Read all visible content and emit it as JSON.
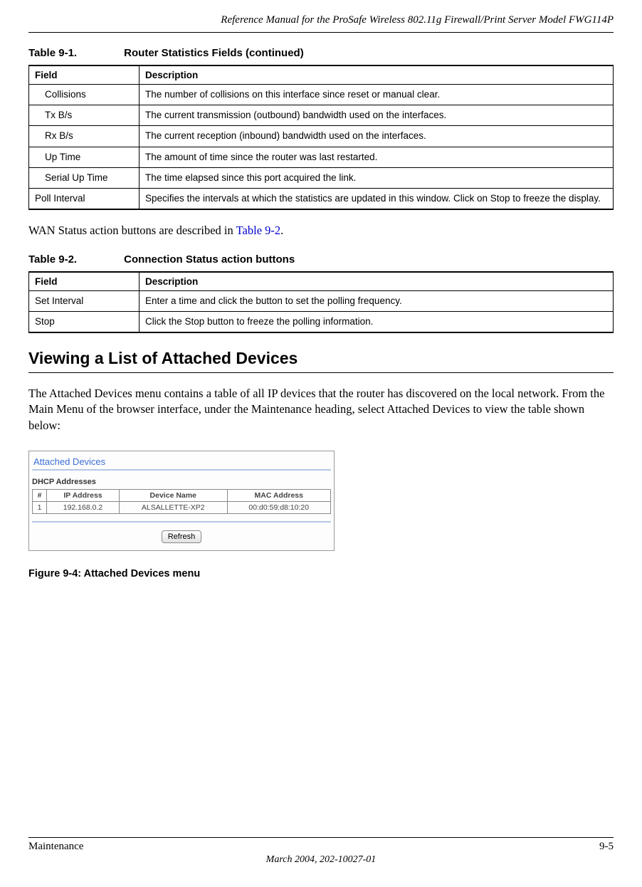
{
  "header": {
    "title": "Reference Manual for the ProSafe Wireless 802.11g  Firewall/Print Server Model FWG114P"
  },
  "table1": {
    "caption_num": "Table 9-1.",
    "caption_title": "Router Statistics Fields (continued)",
    "col_field": "Field",
    "col_desc": "Description",
    "rows": [
      {
        "field": "Collisions",
        "indented": true,
        "desc": "The number of collisions on this interface since reset or manual clear."
      },
      {
        "field": "Tx B/s",
        "indented": true,
        "desc": "The current transmission (outbound) bandwidth used on the interfaces."
      },
      {
        "field": "Rx B/s",
        "indented": true,
        "desc": "The current reception (inbound) bandwidth used on the interfaces."
      },
      {
        "field": "Up Time",
        "indented": true,
        "desc": "The amount of time since the router was last restarted."
      },
      {
        "field": "Serial Up Time",
        "indented": true,
        "desc": "The time elapsed since this port acquired the link."
      },
      {
        "field": "Poll Interval",
        "indented": false,
        "desc": "Specifies the intervals at which the statistics are updated in this window. Click on Stop to freeze the display."
      }
    ]
  },
  "para1": {
    "pre": "WAN Status action buttons are described in ",
    "link": "Table 9-2",
    "post": "."
  },
  "table2": {
    "caption_num": "Table 9-2.",
    "caption_title": "Connection Status action buttons",
    "col_field": "Field",
    "col_desc": "Description",
    "rows": [
      {
        "field": "Set Interval",
        "desc": "Enter a time and click the button to set the polling frequency."
      },
      {
        "field": "Stop",
        "desc": "Click the Stop button to freeze the polling information."
      }
    ]
  },
  "heading": "Viewing a List of Attached Devices",
  "para2": "The Attached Devices menu contains a table of all IP devices that the router has discovered on the local network. From the Main Menu of the browser interface, under the Maintenance heading, select Attached Devices to view the table shown below:",
  "figure": {
    "panel_title": "Attached Devices",
    "subtitle": "DHCP Addresses",
    "cols": [
      "#",
      "IP Address",
      "Device Name",
      "MAC Address"
    ],
    "row": [
      "1",
      "192.168.0.2",
      "ALSALLETTE-XP2",
      "00:d0:59:d8:10:20"
    ],
    "refresh_label": "Refresh"
  },
  "figure_caption": "Figure 9-4:  Attached Devices menu",
  "footer": {
    "left": "Maintenance",
    "right": "9-5",
    "center": "March 2004, 202-10027-01"
  }
}
